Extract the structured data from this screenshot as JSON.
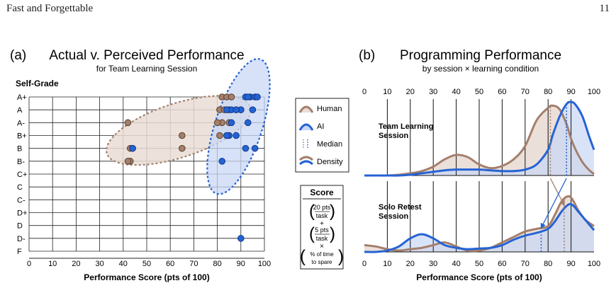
{
  "page": {
    "running_head": "Fast and Forgettable",
    "page_number": "11"
  },
  "chart_data": [
    {
      "id": "a",
      "type": "scatter",
      "panel_label": "(a)",
      "title": "Actual v. Perceived Performance",
      "subtitle": "for Team Learning Session",
      "ylabel": "Self-Grade",
      "xlabel": "Performance Score (pts of 100)",
      "x_ticks": [
        "0",
        "10",
        "20",
        "30",
        "40",
        "50",
        "60",
        "70",
        "80",
        "90",
        "100"
      ],
      "xlim": [
        0,
        100
      ],
      "y_categories": [
        "A+",
        "A",
        "A-",
        "B+",
        "B",
        "B-",
        "C+",
        "C",
        "C-",
        "D+",
        "D",
        "D-",
        "F"
      ],
      "grid": true,
      "series": [
        {
          "name": "Human",
          "color": "#a47f6c",
          "points": [
            [
              42,
              "A-"
            ],
            [
              43,
              "B"
            ],
            [
              44,
              "B"
            ],
            [
              43,
              "B-"
            ],
            [
              42,
              "B-"
            ],
            [
              65,
              "B+"
            ],
            [
              65,
              "B"
            ],
            [
              82,
              "A+"
            ],
            [
              84,
              "A+"
            ],
            [
              86,
              "A+"
            ],
            [
              81,
              "A"
            ],
            [
              83,
              "A"
            ],
            [
              85,
              "A"
            ],
            [
              88,
              "A"
            ],
            [
              90,
              "A"
            ],
            [
              82,
              "A-"
            ],
            [
              85,
              "A-"
            ],
            [
              81,
              "B+"
            ],
            [
              84,
              "B+"
            ],
            [
              80,
              "A-"
            ]
          ]
        },
        {
          "name": "AI",
          "color": "#2563d4",
          "points": [
            [
              92,
              "A+"
            ],
            [
              94,
              "A+"
            ],
            [
              96,
              "A+"
            ],
            [
              93,
              "A+"
            ],
            [
              95,
              "A"
            ],
            [
              97,
              "A+"
            ],
            [
              90,
              "A"
            ],
            [
              86,
              "A"
            ],
            [
              84,
              "A"
            ],
            [
              88,
              "A"
            ],
            [
              86,
              "A-"
            ],
            [
              93,
              "A-"
            ],
            [
              88,
              "B+"
            ],
            [
              85,
              "B+"
            ],
            [
              84,
              "B+"
            ],
            [
              92,
              "B"
            ],
            [
              96,
              "B"
            ],
            [
              82,
              "B-"
            ],
            [
              44,
              "B"
            ],
            [
              90,
              "D-"
            ]
          ]
        }
      ],
      "ellipses": [
        {
          "series": "Human",
          "cx": 63.5,
          "cy_grade_index": 2.6,
          "rx": 32,
          "ry_grades": 2.1,
          "rotate_deg": -18
        },
        {
          "series": "AI",
          "cx": 89,
          "cy_grade_index": 2.3,
          "rx": 10,
          "ry_grades": 5.5,
          "rotate_deg": 18
        }
      ]
    },
    {
      "id": "b",
      "type": "area",
      "panel_label": "(b)",
      "title": "Programming Performance",
      "subtitle": "by session × learning condition",
      "xlabel": "Performance Score (pts of 100)",
      "x_ticks": [
        "0",
        "10",
        "20",
        "30",
        "40",
        "50",
        "60",
        "70",
        "80",
        "90",
        "100"
      ],
      "xlim": [
        0,
        100
      ],
      "panels": [
        {
          "label": "Team Learning Session",
          "x": [
            0,
            5,
            10,
            15,
            20,
            25,
            30,
            35,
            40,
            45,
            50,
            55,
            60,
            65,
            70,
            75,
            80,
            82,
            85,
            88,
            90,
            92,
            95,
            98,
            100
          ],
          "human": [
            0.0,
            0.0,
            0.0,
            0.01,
            0.03,
            0.06,
            0.12,
            0.22,
            0.28,
            0.25,
            0.15,
            0.1,
            0.13,
            0.22,
            0.4,
            0.75,
            0.92,
            0.95,
            0.9,
            0.7,
            0.5,
            0.35,
            0.18,
            0.07,
            0.02
          ],
          "ai": [
            0.0,
            0.0,
            0.0,
            0.0,
            0.01,
            0.03,
            0.05,
            0.07,
            0.08,
            0.08,
            0.08,
            0.07,
            0.06,
            0.06,
            0.08,
            0.15,
            0.35,
            0.55,
            0.8,
            0.97,
            1.0,
            0.96,
            0.8,
            0.52,
            0.35
          ],
          "median_human": 81,
          "median_ai": 88
        },
        {
          "label": "Solo Retest Session",
          "x": [
            0,
            5,
            10,
            15,
            20,
            25,
            30,
            35,
            40,
            45,
            50,
            55,
            60,
            65,
            70,
            75,
            80,
            83,
            86,
            89,
            91,
            93,
            96,
            100
          ],
          "human": [
            0.1,
            0.08,
            0.04,
            0.02,
            0.04,
            0.06,
            0.1,
            0.14,
            0.08,
            0.02,
            0.02,
            0.06,
            0.14,
            0.22,
            0.3,
            0.34,
            0.38,
            0.55,
            0.75,
            0.82,
            0.75,
            0.62,
            0.48,
            0.38
          ],
          "ai": [
            0.0,
            0.0,
            0.02,
            0.08,
            0.2,
            0.26,
            0.2,
            0.1,
            0.06,
            0.04,
            0.05,
            0.06,
            0.1,
            0.18,
            0.24,
            0.28,
            0.34,
            0.45,
            0.6,
            0.7,
            0.68,
            0.6,
            0.48,
            0.32
          ],
          "median_human": 87,
          "median_ai": 77
        }
      ]
    }
  ],
  "legend": {
    "items": [
      {
        "label": "Human",
        "kind": "human"
      },
      {
        "label": "AI",
        "kind": "ai"
      },
      {
        "label": "Median",
        "kind": "median"
      },
      {
        "label": "Density",
        "kind": "density"
      }
    ]
  },
  "score_box": {
    "title": "Score",
    "term1_num": "20 pts",
    "term1_den": "task",
    "plus": "+",
    "term2_num": "5 pts",
    "term2_den": "task",
    "times": "×",
    "term3_line1": "% of time",
    "term3_line2": "to spare"
  },
  "colors": {
    "human": "#a47f6c",
    "human_fill": "#e9ddd5",
    "ai": "#2563d4",
    "ai_fill": "#c9d7f5",
    "both_fill": "#d2d3e4",
    "grid": "#222222"
  }
}
